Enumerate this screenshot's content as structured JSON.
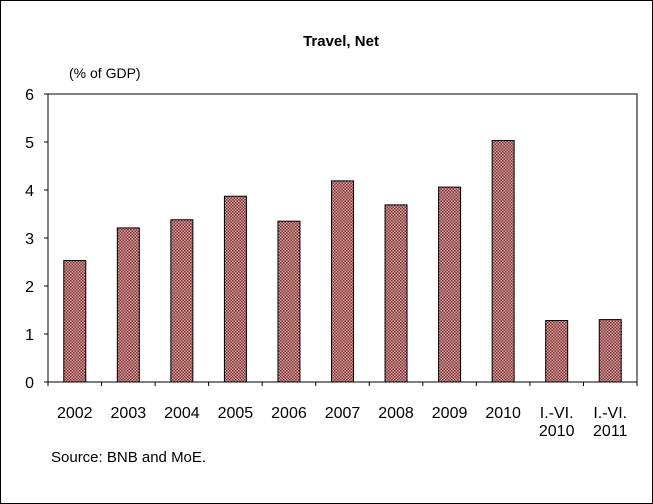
{
  "chart_data": {
    "type": "bar",
    "title": "Travel, Net",
    "unit_label": "(% of GDP)",
    "source": "Source: BNB and MoE.",
    "categories": [
      [
        "2002"
      ],
      [
        "2003"
      ],
      [
        "2004"
      ],
      [
        "2005"
      ],
      [
        "2006"
      ],
      [
        "2007"
      ],
      [
        "2008"
      ],
      [
        "2009"
      ],
      [
        "2010"
      ],
      [
        "I.-VI.",
        "2010"
      ],
      [
        "I.-VI.",
        "2011"
      ]
    ],
    "values": [
      2.53,
      3.21,
      3.38,
      3.87,
      3.35,
      4.19,
      3.69,
      4.06,
      5.03,
      1.28,
      1.3
    ],
    "ylim": [
      0,
      6
    ],
    "yticks": [
      0,
      1,
      2,
      3,
      4,
      5,
      6
    ],
    "grid": false,
    "legend": "none",
    "colors": {
      "bar_fill": "#c99a9a",
      "bar_hatch": "#8b3a3a",
      "bar_edge": "#000000"
    }
  }
}
